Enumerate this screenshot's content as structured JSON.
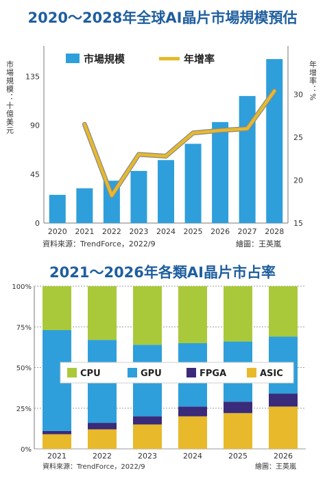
{
  "colors": {
    "title": "#1F5E9E",
    "bar": "#2E9FDB",
    "line": "#E7B92B",
    "line_outline": "#8A8A8A",
    "cpu": "#A9C93A",
    "gpu": "#2E9FDB",
    "fpga": "#3A2A7A",
    "asic": "#E7B92B",
    "grid": "#9A9A9A"
  },
  "chart_data": [
    {
      "type": "bar+line",
      "title": "2020～2028年全球AI晶片市場規模預估",
      "ylabel": "市場規模：十億美元",
      "y2label": "年增率：%",
      "categories": [
        "2020",
        "2021",
        "2022",
        "2023",
        "2024",
        "2025",
        "2026",
        "2027",
        "2028"
      ],
      "y_ticks": [
        "0",
        "45",
        "90",
        "135"
      ],
      "y2_ticks": [
        "15",
        "20",
        "25",
        "30"
      ],
      "ylim": [
        0,
        158
      ],
      "y2lim": [
        15,
        35
      ],
      "series": [
        {
          "name": "市場規模",
          "type": "bar",
          "values": [
            26,
            32,
            39,
            48,
            58,
            73,
            93,
            117,
            151
          ]
        },
        {
          "name": "年增率",
          "type": "line",
          "values": [
            null,
            26.5,
            18.2,
            23,
            22.8,
            25.5,
            25.8,
            26,
            30.4
          ]
        }
      ],
      "legend": "top",
      "grid": false,
      "source": "資料來源：TrendForce，2022/9",
      "credit": "繪圖：王英嵐"
    },
    {
      "type": "stacked_bar",
      "title": "2021～2026年各類AI晶片市占率",
      "categories": [
        "2021",
        "2022",
        "2023",
        "2024",
        "2025",
        "2026"
      ],
      "y_ticks": [
        "0%",
        "25%",
        "50%",
        "75%",
        "100%"
      ],
      "ylim": [
        0,
        100
      ],
      "series": [
        {
          "name": "ASIC",
          "values": [
            9,
            12,
            15,
            20,
            22,
            26
          ]
        },
        {
          "name": "FPGA",
          "values": [
            2,
            4,
            5,
            6,
            7,
            8
          ]
        },
        {
          "name": "GPU",
          "values": [
            62,
            51,
            44,
            39,
            37,
            35
          ]
        },
        {
          "name": "CPU",
          "values": [
            27,
            33,
            36,
            35,
            34,
            31
          ]
        }
      ],
      "legend_order": [
        "CPU",
        "GPU",
        "FPGA",
        "ASIC"
      ],
      "legend": "center",
      "grid": true,
      "source": "資料來源：TrendForce，2022/9",
      "credit": "繪圖：王英嵐"
    }
  ]
}
